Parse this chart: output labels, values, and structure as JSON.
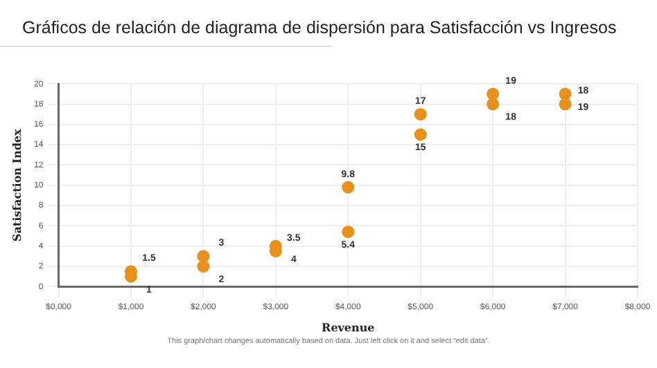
{
  "chart_data": {
    "type": "scatter",
    "title": "Gráficos de relación de diagrama de dispersión para Satisfacción vs Ingresos",
    "xlabel": "Revenue",
    "ylabel": "Satisfaction Index",
    "annotations": [
      "This graph/chart changes automatically based on data. Just left click on it and select “edit data”."
    ],
    "series": [
      {
        "color": "#e8901a",
        "x": [
          1000,
          2000,
          3000,
          4000,
          5000,
          6000,
          7000
        ],
        "values": [
          1.5,
          3,
          3.5,
          9.8,
          17,
          19,
          18
        ]
      },
      {
        "color": "#e8901a",
        "x": [
          1000,
          2000,
          3000,
          4000,
          5000,
          6000,
          7000
        ],
        "values": [
          1,
          2,
          4,
          5.4,
          15,
          18,
          19
        ]
      }
    ],
    "xlim": [
      0,
      8000
    ],
    "xticks": [
      {
        "value": 0,
        "label": "$0,000"
      },
      {
        "value": 1000,
        "label": "$1,000"
      },
      {
        "value": 2000,
        "label": "$2,000"
      },
      {
        "value": 3000,
        "label": "$3,000"
      },
      {
        "value": 4000,
        "label": "$4,000"
      },
      {
        "value": 5000,
        "label": "$5,000"
      },
      {
        "value": 6000,
        "label": "$6,000"
      },
      {
        "value": 7000,
        "label": "$7,000"
      },
      {
        "value": 8000,
        "label": "$8,000"
      }
    ],
    "ylim": [
      0,
      20
    ],
    "yticks": [
      0,
      2,
      4,
      6,
      8,
      10,
      12,
      14,
      16,
      18,
      20
    ],
    "grid": true,
    "legend": false,
    "marker": "circle",
    "data_labels": true
  }
}
